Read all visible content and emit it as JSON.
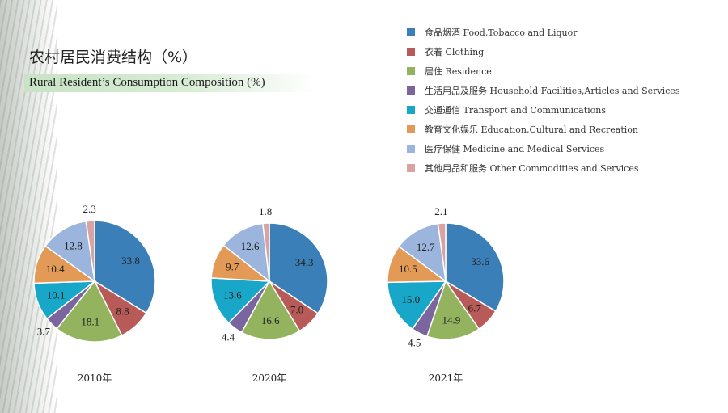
{
  "title": {
    "cn": "农村居民消费结构（%）",
    "en": "Rural Resident’s Consumption Composition (%)"
  },
  "chart_data": [
    {
      "type": "pie",
      "title": "2010年",
      "categories": [
        "食品烟酒 Food,Tobacco and Liquor",
        "衣着 Clothing",
        "居住 Residence",
        "生活用品及服务 Household Facilities,Articles and Services",
        "交通通信 Transport and Communications",
        "教育文化娱乐 Education,Cultural and Recreation",
        "医疗保健 Medicine and Medical Services",
        "其他用品和服务 Other Commodities and Services"
      ],
      "values": [
        33.8,
        8.8,
        18.1,
        3.7,
        10.1,
        10.4,
        12.8,
        2.3
      ]
    },
    {
      "type": "pie",
      "title": "2020年",
      "categories": [
        "食品烟酒 Food,Tobacco and Liquor",
        "衣着 Clothing",
        "居住 Residence",
        "生活用品及服务 Household Facilities,Articles and Services",
        "交通通信 Transport and Communications",
        "教育文化娱乐 Education,Cultural and Recreation",
        "医疗保健 Medicine and Medical Services",
        "其他用品和服务 Other Commodities and Services"
      ],
      "values": [
        34.3,
        7.0,
        16.6,
        4.4,
        13.6,
        9.7,
        12.6,
        1.8
      ]
    },
    {
      "type": "pie",
      "title": "2021年",
      "categories": [
        "食品烟酒 Food,Tobacco and Liquor",
        "衣着 Clothing",
        "居住 Residence",
        "生活用品及服务 Household Facilities,Articles and Services",
        "交通通信 Transport and Communications",
        "教育文化娱乐 Education,Cultural and Recreation",
        "医疗保健 Medicine and Medical Services",
        "其他用品和服务 Other Commodities and Services"
      ],
      "values": [
        33.6,
        6.7,
        14.9,
        4.5,
        15.0,
        10.5,
        12.7,
        2.1
      ]
    }
  ],
  "legend": [
    {
      "label": "食品烟酒 Food,Tobacco and Liquor",
      "color": "#3b7fb8"
    },
    {
      "label": "衣着 Clothing",
      "color": "#b85a57"
    },
    {
      "label": "居住 Residence",
      "color": "#93b35e"
    },
    {
      "label": "生活用品及服务 Household Facilities,Articles and Services",
      "color": "#7a659e"
    },
    {
      "label": "交通通信 Transport and Communications",
      "color": "#19a7c9"
    },
    {
      "label": "教育文化娱乐 Education,Cultural and Recreation",
      "color": "#e29a56"
    },
    {
      "label": "医疗保健 Medicine and Medical Services",
      "color": "#9bb5dd"
    },
    {
      "label": "其他用品和服务 Other Commodities and Services",
      "color": "#d9a3a4"
    }
  ]
}
